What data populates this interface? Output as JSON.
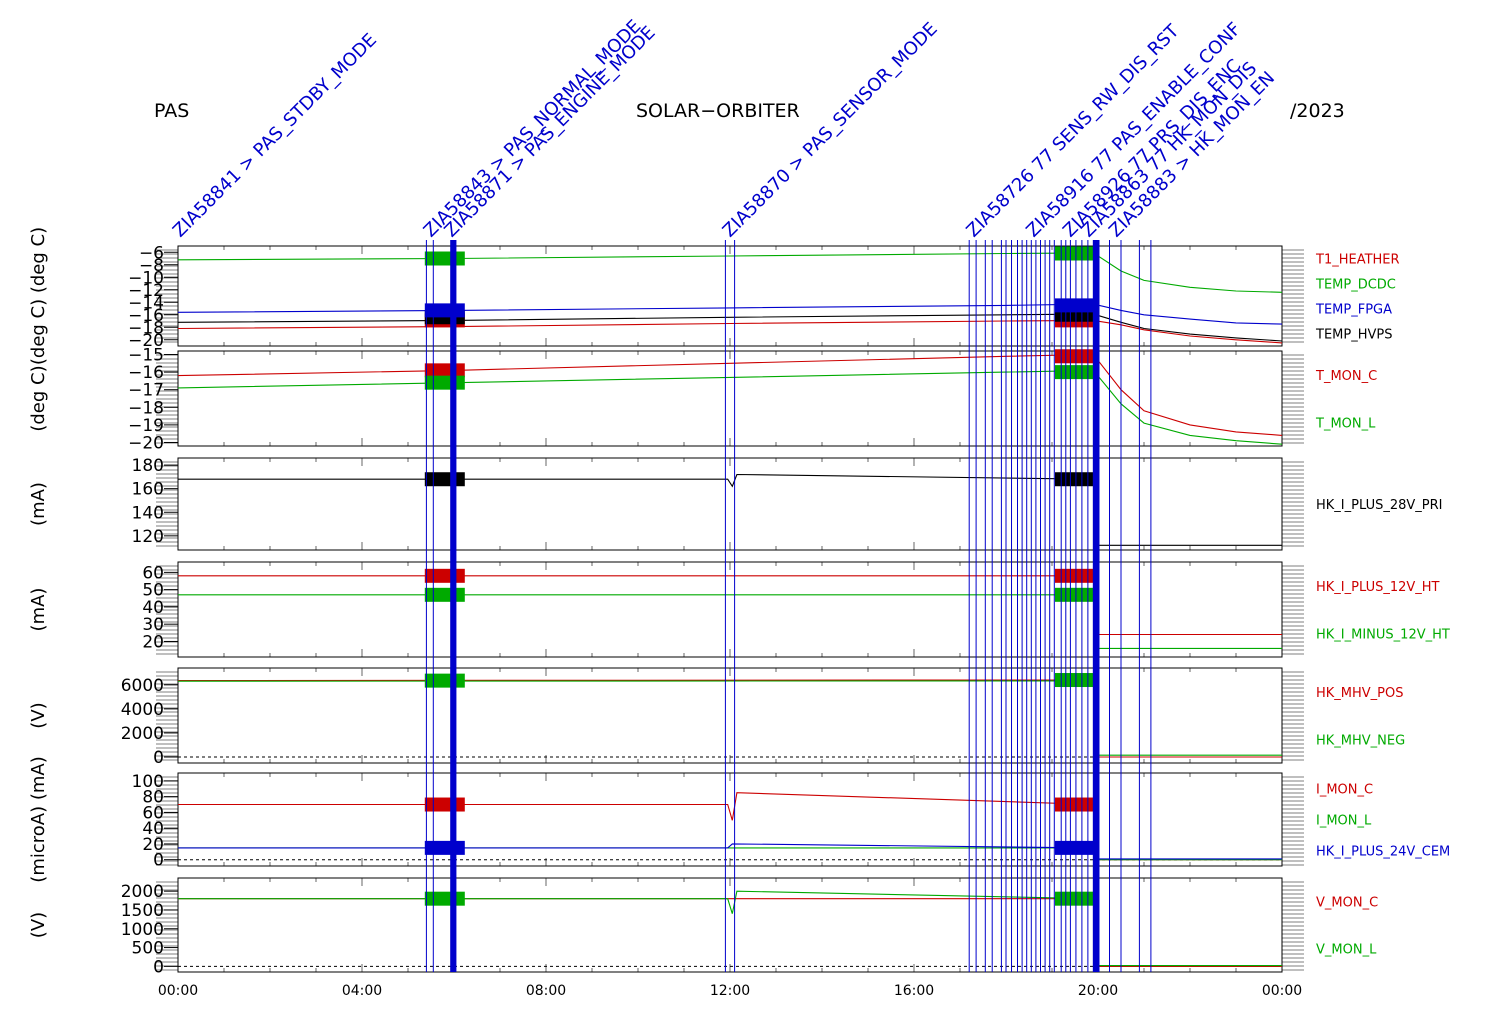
{
  "header": {
    "instrument": "PAS",
    "mission": "SOLAR−ORBITER",
    "date": "/2023"
  },
  "event_labels": [
    "ZIA58841 > PAS_STDBY_MODE",
    "ZIA58843 > PAS_NORMAL_MODE",
    "ZIA58871 > PAS_ENGINE_MODE",
    "ZIA58870 > PAS_SENSOR_MODE",
    "ZIA58726 77 SENS_RW_DIS_RST",
    "ZIA58916 77 PAS_ENABLE_CONF",
    "ZIA58926 77 PRS_DIS_ENC",
    "ZIA58863 77 HK_MON_DIS",
    "ZIA58883 > HK_MON_EN"
  ],
  "chart_data": [
    {
      "type": "line",
      "ylabel": "(deg C)  (deg C)",
      "yticks": [
        "−6",
        "−8",
        "−10",
        "−12",
        "−14",
        "−16",
        "−18",
        "−20"
      ],
      "ylim": [
        -21,
        -5
      ],
      "series": [
        {
          "name": "T1_HEATHER",
          "color": "#cc0000",
          "x": [
            0,
            6,
            12,
            18,
            19.9,
            20.5,
            21,
            22,
            23,
            24
          ],
          "y": [
            -18.2,
            -17.9,
            -17.4,
            -17.0,
            -16.9,
            -17.6,
            -18.4,
            -19.4,
            -20.0,
            -20.5
          ]
        },
        {
          "name": "TEMP_DCDC",
          "color": "#00aa00",
          "x": [
            0,
            6,
            12,
            18,
            19.9,
            20.5,
            21,
            22,
            23,
            24
          ],
          "y": [
            -7.2,
            -7.0,
            -6.6,
            -6.2,
            -6.1,
            -9.0,
            -10.5,
            -11.6,
            -12.2,
            -12.4
          ]
        },
        {
          "name": "TEMP_FPGA",
          "color": "#0000cc",
          "x": [
            0,
            6,
            12,
            18,
            19.9,
            20.5,
            21,
            22,
            23,
            24
          ],
          "y": [
            -15.6,
            -15.3,
            -14.9,
            -14.5,
            -14.3,
            -15.3,
            -16.0,
            -16.7,
            -17.3,
            -17.5
          ]
        },
        {
          "name": "TEMP_HVPS",
          "color": "#000000",
          "x": [
            0,
            6,
            12,
            18,
            19.9,
            20.5,
            21,
            22,
            23,
            24
          ],
          "y": [
            -17.2,
            -16.9,
            -16.4,
            -16.0,
            -15.9,
            -17.2,
            -18.2,
            -19.1,
            -19.7,
            -20.2
          ]
        }
      ]
    },
    {
      "type": "line",
      "ylabel": "(deg C)",
      "yticks": [
        "−15",
        "−16",
        "−17",
        "−18",
        "−19",
        "−20"
      ],
      "ylim": [
        -20.2,
        -14.8
      ],
      "series": [
        {
          "name": "T_MON_C",
          "color": "#cc0000",
          "x": [
            0,
            6,
            12,
            18,
            19.9,
            20.5,
            21,
            22,
            23,
            24
          ],
          "y": [
            -16.2,
            -15.9,
            -15.5,
            -15.1,
            -15.0,
            -17.0,
            -18.2,
            -19.0,
            -19.4,
            -19.6
          ]
        },
        {
          "name": "T_MON_L",
          "color": "#00aa00",
          "x": [
            0,
            6,
            12,
            18,
            19.9,
            20.5,
            21,
            22,
            23,
            24
          ],
          "y": [
            -16.9,
            -16.6,
            -16.3,
            -16.0,
            -15.9,
            -17.8,
            -18.9,
            -19.6,
            -19.9,
            -20.1
          ]
        }
      ]
    },
    {
      "type": "line",
      "ylabel": "(mA)",
      "yticks": [
        "180",
        "160",
        "140",
        "120"
      ],
      "ylim": [
        108,
        186
      ],
      "series": [
        {
          "name": "HK_I_PLUS_28V_PRI",
          "color": "#000000",
          "x": [
            0,
            11.95,
            12.05,
            12.15,
            19.9,
            19.95,
            24
          ],
          "y": [
            168,
            168,
            162,
            172,
            168,
            112,
            112
          ]
        }
      ]
    },
    {
      "type": "line",
      "ylabel": "(mA)",
      "yticks": [
        "60",
        "50",
        "40",
        "30",
        "20"
      ],
      "ylim": [
        11,
        66
      ],
      "series": [
        {
          "name": "HK_I_PLUS_12V_HT",
          "color": "#cc0000",
          "x": [
            0,
            19.9,
            19.95,
            24
          ],
          "y": [
            58,
            58,
            24,
            24
          ]
        },
        {
          "name": "HK_I_MINUS_12V_HT",
          "color": "#00aa00",
          "x": [
            0,
            19.9,
            19.95,
            24
          ],
          "y": [
            47,
            47,
            16,
            16
          ]
        }
      ]
    },
    {
      "type": "line",
      "ylabel": "(V)",
      "yticks": [
        "6000",
        "4000",
        "2000",
        "0"
      ],
      "ylim": [
        -500,
        7400
      ],
      "series": [
        {
          "name": "HK_MHV_POS",
          "color": "#cc0000",
          "x": [
            0,
            17.2,
            19.9,
            19.95,
            24
          ],
          "y": [
            6350,
            6400,
            6400,
            0,
            0
          ]
        },
        {
          "name": "HK_MHV_NEG",
          "color": "#00aa00",
          "x": [
            0,
            19.9,
            19.95,
            24
          ],
          "y": [
            6300,
            6330,
            150,
            150
          ]
        }
      ]
    },
    {
      "type": "line",
      "ylabel": "(microA) (mA)",
      "yticks": [
        "100",
        "80",
        "60",
        "40",
        "20",
        "0"
      ],
      "ylim": [
        -8,
        110
      ],
      "series": [
        {
          "name": "I_MON_C",
          "color": "#cc0000",
          "x": [
            0,
            11.95,
            12.05,
            12.15,
            19.9,
            19.95,
            24
          ],
          "y": [
            70,
            70,
            50,
            85,
            70,
            0,
            0
          ]
        },
        {
          "name": "I_MON_L",
          "color": "#00aa00",
          "x": [
            0,
            19.9,
            19.95,
            24
          ],
          "y": [
            15,
            15,
            0,
            0
          ]
        },
        {
          "name": "HK_I_PLUS_24V_CEM",
          "color": "#0000cc",
          "x": [
            0,
            11.95,
            12.05,
            19.9,
            19.95,
            24
          ],
          "y": [
            15,
            15,
            20,
            15,
            1,
            1
          ]
        }
      ]
    },
    {
      "type": "line",
      "ylabel": "(V)",
      "yticks": [
        "2000",
        "1500",
        "1000",
        "500",
        "0"
      ],
      "ylim": [
        -150,
        2350
      ],
      "series": [
        {
          "name": "V_MON_C",
          "color": "#cc0000",
          "x": [
            0,
            19.9,
            19.95,
            24
          ],
          "y": [
            1800,
            1800,
            0,
            0
          ]
        },
        {
          "name": "V_MON_L",
          "color": "#00aa00",
          "x": [
            0,
            11.95,
            12.05,
            12.15,
            19.9,
            19.95,
            24
          ],
          "y": [
            1800,
            1800,
            1400,
            2000,
            1800,
            20,
            20
          ]
        }
      ]
    }
  ],
  "x_axis": {
    "ticks": [
      "00:00",
      "04:00",
      "08:00",
      "12:00",
      "16:00",
      "20:00",
      "00:00"
    ],
    "xlim_hours": [
      0,
      24
    ]
  },
  "event_times_hours": [
    5.4,
    5.55,
    5.95,
    5.98,
    6.02,
    11.9,
    12.1,
    17.2,
    17.35,
    17.55,
    17.7,
    17.9,
    18.0,
    18.12,
    18.25,
    18.35,
    18.45,
    18.55,
    18.65,
    18.75,
    18.85,
    18.95,
    19.05,
    19.2,
    19.3,
    19.4,
    19.52,
    19.65,
    19.78,
    19.92,
    19.96,
    20.0,
    20.25,
    20.5,
    20.9,
    21.15
  ],
  "marker_blocks": [
    {
      "time": 5.8,
      "panel": 0,
      "value": -16.9,
      "color": "#cc0000"
    },
    {
      "time": 5.8,
      "panel": 0,
      "value": -16.4,
      "color": "#000000"
    },
    {
      "time": 5.8,
      "panel": 0,
      "value": -15.3,
      "color": "#0000cc"
    },
    {
      "time": 5.8,
      "panel": 0,
      "value": -7.0,
      "color": "#00aa00"
    },
    {
      "time": 5.8,
      "panel": 1,
      "value": -15.9,
      "color": "#cc0000"
    },
    {
      "time": 5.8,
      "panel": 1,
      "value": -16.6,
      "color": "#00aa00"
    },
    {
      "time": 5.8,
      "panel": 2,
      "value": 168,
      "color": "#000000"
    },
    {
      "time": 5.8,
      "panel": 3,
      "value": 58,
      "color": "#cc0000"
    },
    {
      "time": 5.8,
      "panel": 3,
      "value": 47,
      "color": "#00aa00"
    },
    {
      "time": 5.8,
      "panel": 4,
      "value": 6350,
      "color": "#00aa00"
    },
    {
      "time": 5.8,
      "panel": 5,
      "value": 70,
      "color": "#cc0000"
    },
    {
      "time": 5.8,
      "panel": 5,
      "value": 15,
      "color": "#0000cc"
    },
    {
      "time": 5.8,
      "panel": 6,
      "value": 1800,
      "color": "#00aa00"
    },
    {
      "time": 19.5,
      "panel": 0,
      "value": -16.9,
      "color": "#cc0000"
    },
    {
      "time": 19.5,
      "panel": 0,
      "value": -16.0,
      "color": "#000000"
    },
    {
      "time": 19.5,
      "panel": 0,
      "value": -14.5,
      "color": "#0000cc"
    },
    {
      "time": 19.5,
      "panel": 0,
      "value": -6.2,
      "color": "#00aa00"
    },
    {
      "time": 19.5,
      "panel": 1,
      "value": -15.1,
      "color": "#cc0000"
    },
    {
      "time": 19.5,
      "panel": 1,
      "value": -16.0,
      "color": "#00aa00"
    },
    {
      "time": 19.5,
      "panel": 2,
      "value": 168,
      "color": "#000000"
    },
    {
      "time": 19.5,
      "panel": 3,
      "value": 58,
      "color": "#cc0000"
    },
    {
      "time": 19.5,
      "panel": 3,
      "value": 47,
      "color": "#00aa00"
    },
    {
      "time": 19.5,
      "panel": 4,
      "value": 6400,
      "color": "#00aa00"
    },
    {
      "time": 19.5,
      "panel": 5,
      "value": 70,
      "color": "#cc0000"
    },
    {
      "time": 19.5,
      "panel": 5,
      "value": 15,
      "color": "#0000cc"
    },
    {
      "time": 19.5,
      "panel": 6,
      "value": 1800,
      "color": "#00aa00"
    }
  ]
}
